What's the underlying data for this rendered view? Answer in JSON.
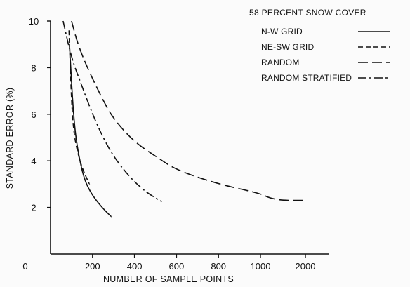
{
  "chart_data": {
    "type": "line",
    "title": "58 PERCENT SNOW COVER",
    "xlabel": "NUMBER OF SAMPLE POINTS",
    "ylabel": "STANDARD ERROR (%)",
    "xlim": [
      0,
      2100
    ],
    "ylim": [
      0,
      10
    ],
    "x_tick_labels": [
      "0",
      "200",
      "400",
      "600",
      "800",
      "1000",
      "2000"
    ],
    "y_ticks": [
      2,
      4,
      6,
      8,
      10
    ],
    "legend_position": "top-right",
    "grid": false,
    "series": [
      {
        "name": "N-W GRID",
        "style": "solid",
        "x": [
          90,
          110,
          130,
          160,
          200,
          250,
          290
        ],
        "y": [
          9.0,
          5.8,
          4.4,
          3.2,
          2.5,
          1.95,
          1.6
        ]
      },
      {
        "name": "NE-SW GRID",
        "style": "dashed",
        "x": [
          88,
          100,
          110,
          125,
          150,
          185
        ],
        "y": [
          9.6,
          6.5,
          5.3,
          4.5,
          3.7,
          3.0
        ]
      },
      {
        "name": "RANDOM",
        "style": "long-dash",
        "x": [
          100,
          130,
          180,
          250,
          300,
          400,
          500,
          600,
          800,
          1000,
          1200,
          1500,
          2000
        ],
        "y": [
          10.0,
          9.0,
          7.9,
          6.6,
          5.8,
          4.8,
          4.2,
          3.6,
          3.0,
          2.6,
          2.4,
          2.3,
          2.3
        ]
      },
      {
        "name": "RANDOM STRATIFIED",
        "style": "dash-dot",
        "x": [
          60,
          100,
          150,
          200,
          250,
          300,
          350,
          400,
          450,
          500,
          530
        ],
        "y": [
          10.0,
          8.4,
          7.2,
          6.0,
          5.0,
          4.2,
          3.6,
          3.1,
          2.7,
          2.4,
          2.25
        ]
      }
    ]
  }
}
